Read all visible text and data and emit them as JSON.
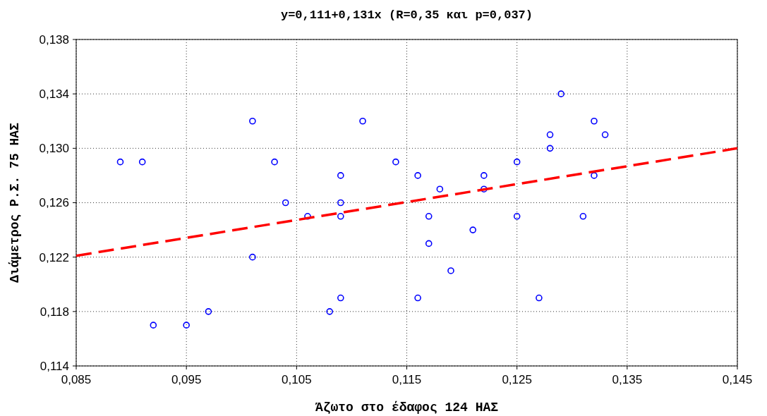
{
  "chart_data": {
    "type": "scatter",
    "title": "y=0,111+0,131x (R=0,35 και p=0,037)",
    "xlabel": "Άζωτο στο έδαφος 124 ΗΑΣ",
    "ylabel": "Διάμετρος Ρ.Σ. 75 ΗΑΣ",
    "xlim": [
      0.085,
      0.145
    ],
    "ylim": [
      0.114,
      0.138
    ],
    "xticks": [
      {
        "value": 0.085,
        "label": "0,085"
      },
      {
        "value": 0.095,
        "label": "0,095"
      },
      {
        "value": 0.105,
        "label": "0,105"
      },
      {
        "value": 0.115,
        "label": "0,115"
      },
      {
        "value": 0.125,
        "label": "0,125"
      },
      {
        "value": 0.135,
        "label": "0,135"
      },
      {
        "value": 0.145,
        "label": "0,145"
      }
    ],
    "yticks": [
      {
        "value": 0.114,
        "label": "0,114"
      },
      {
        "value": 0.118,
        "label": "0,118"
      },
      {
        "value": 0.122,
        "label": "0,122"
      },
      {
        "value": 0.126,
        "label": "0,126"
      },
      {
        "value": 0.13,
        "label": "0,130"
      },
      {
        "value": 0.134,
        "label": "0,134"
      },
      {
        "value": 0.138,
        "label": "0,138"
      }
    ],
    "grid": true,
    "marker": "circle",
    "series": [
      {
        "color": "#0000ff",
        "x": [
          0.089,
          0.091,
          0.092,
          0.095,
          0.097,
          0.101,
          0.101,
          0.103,
          0.104,
          0.106,
          0.108,
          0.109,
          0.109,
          0.109,
          0.109,
          0.111,
          0.114,
          0.116,
          0.116,
          0.117,
          0.117,
          0.118,
          0.119,
          0.121,
          0.122,
          0.122,
          0.125,
          0.125,
          0.127,
          0.128,
          0.128,
          0.129,
          0.131,
          0.132,
          0.132,
          0.133
        ],
        "values": [
          0.129,
          0.129,
          0.117,
          0.117,
          0.118,
          0.132,
          0.122,
          0.129,
          0.126,
          0.125,
          0.118,
          0.128,
          0.126,
          0.125,
          0.119,
          0.132,
          0.129,
          0.128,
          0.119,
          0.125,
          0.123,
          0.127,
          0.121,
          0.124,
          0.128,
          0.127,
          0.129,
          0.125,
          0.119,
          0.131,
          0.13,
          0.134,
          0.125,
          0.132,
          0.128,
          0.131
        ]
      },
      {
        "type": "line",
        "color": "#ff0000",
        "line_style": "dashed",
        "marker": "none",
        "x": [
          0.085,
          0.145
        ],
        "values": [
          0.1221,
          0.13
        ]
      }
    ]
  }
}
